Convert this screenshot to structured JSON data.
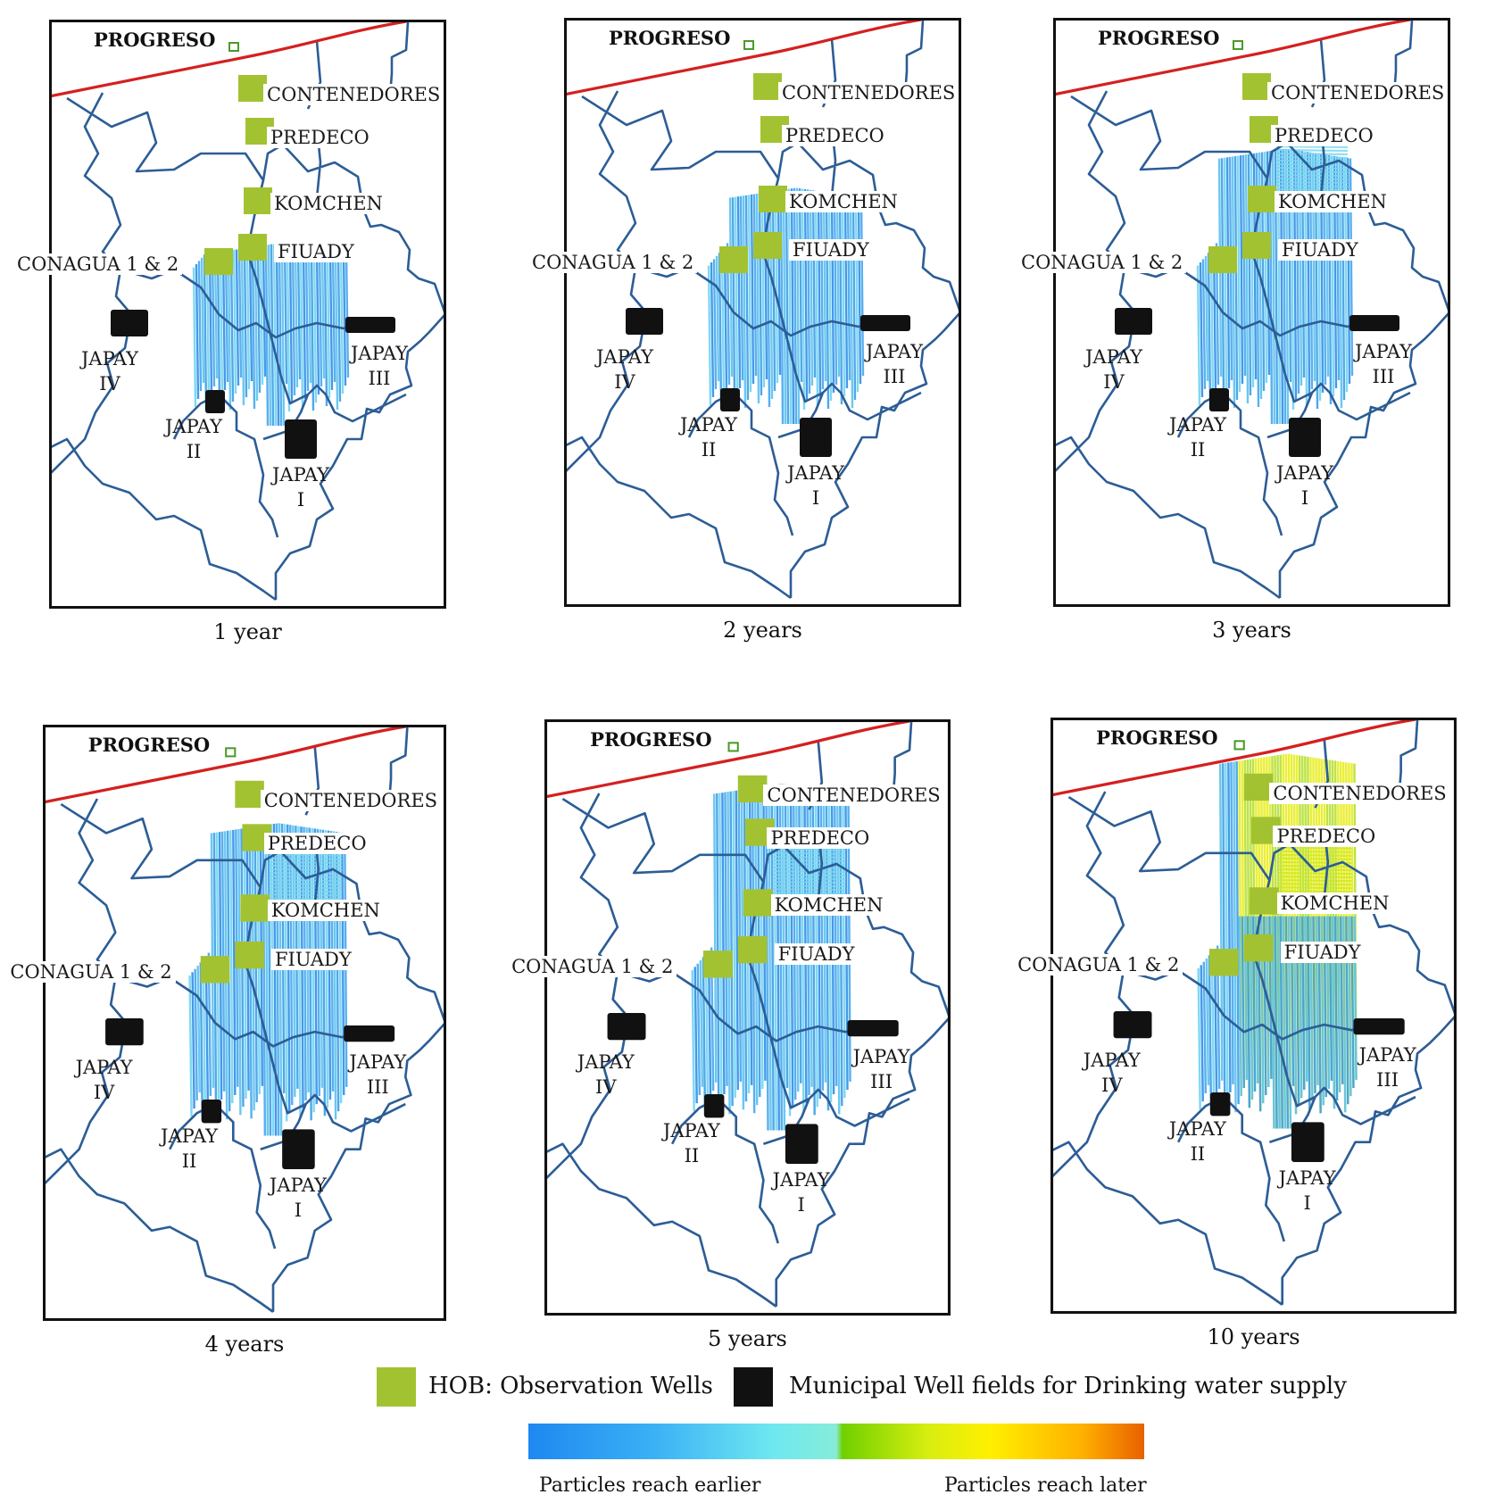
{
  "panels": [
    {
      "caption": "1 year",
      "extent": 0.33,
      "late": false
    },
    {
      "caption": "2 years",
      "extent": 0.52,
      "late": false
    },
    {
      "caption": "3 years",
      "extent": 0.66,
      "late": false
    },
    {
      "caption": "4 years",
      "extent": 0.78,
      "late": false
    },
    {
      "caption": "5 years",
      "extent": 0.9,
      "late": false
    },
    {
      "caption": "10 years",
      "extent": 1.0,
      "late": true
    }
  ],
  "labels": {
    "progreso": "PROGRESO",
    "contenedores": "CONTENEDORES",
    "predeco": "PREDECO",
    "komchen": "KOMCHEN",
    "fiuady": "FIUADY",
    "conagua": "CONAGUA 1 & 2",
    "japay_i": [
      "JAPAY",
      "I"
    ],
    "japay_ii": [
      "JAPAY",
      "II"
    ],
    "japay_iii": [
      "JAPAY",
      "III"
    ],
    "japay_iv": [
      "JAPAY",
      "IV"
    ]
  },
  "legend": {
    "observation": "HOB: Observation Wells",
    "municipal": "Municipal Well fields for Drinking water supply",
    "earlier": "Particles reach earlier",
    "later": "Particles reach later"
  },
  "colors": {
    "observation_well": "#a3c232",
    "municipal_well": "#111111",
    "coastline": "#d42020",
    "boundary": "#2c5d96",
    "frame": "#111111"
  }
}
